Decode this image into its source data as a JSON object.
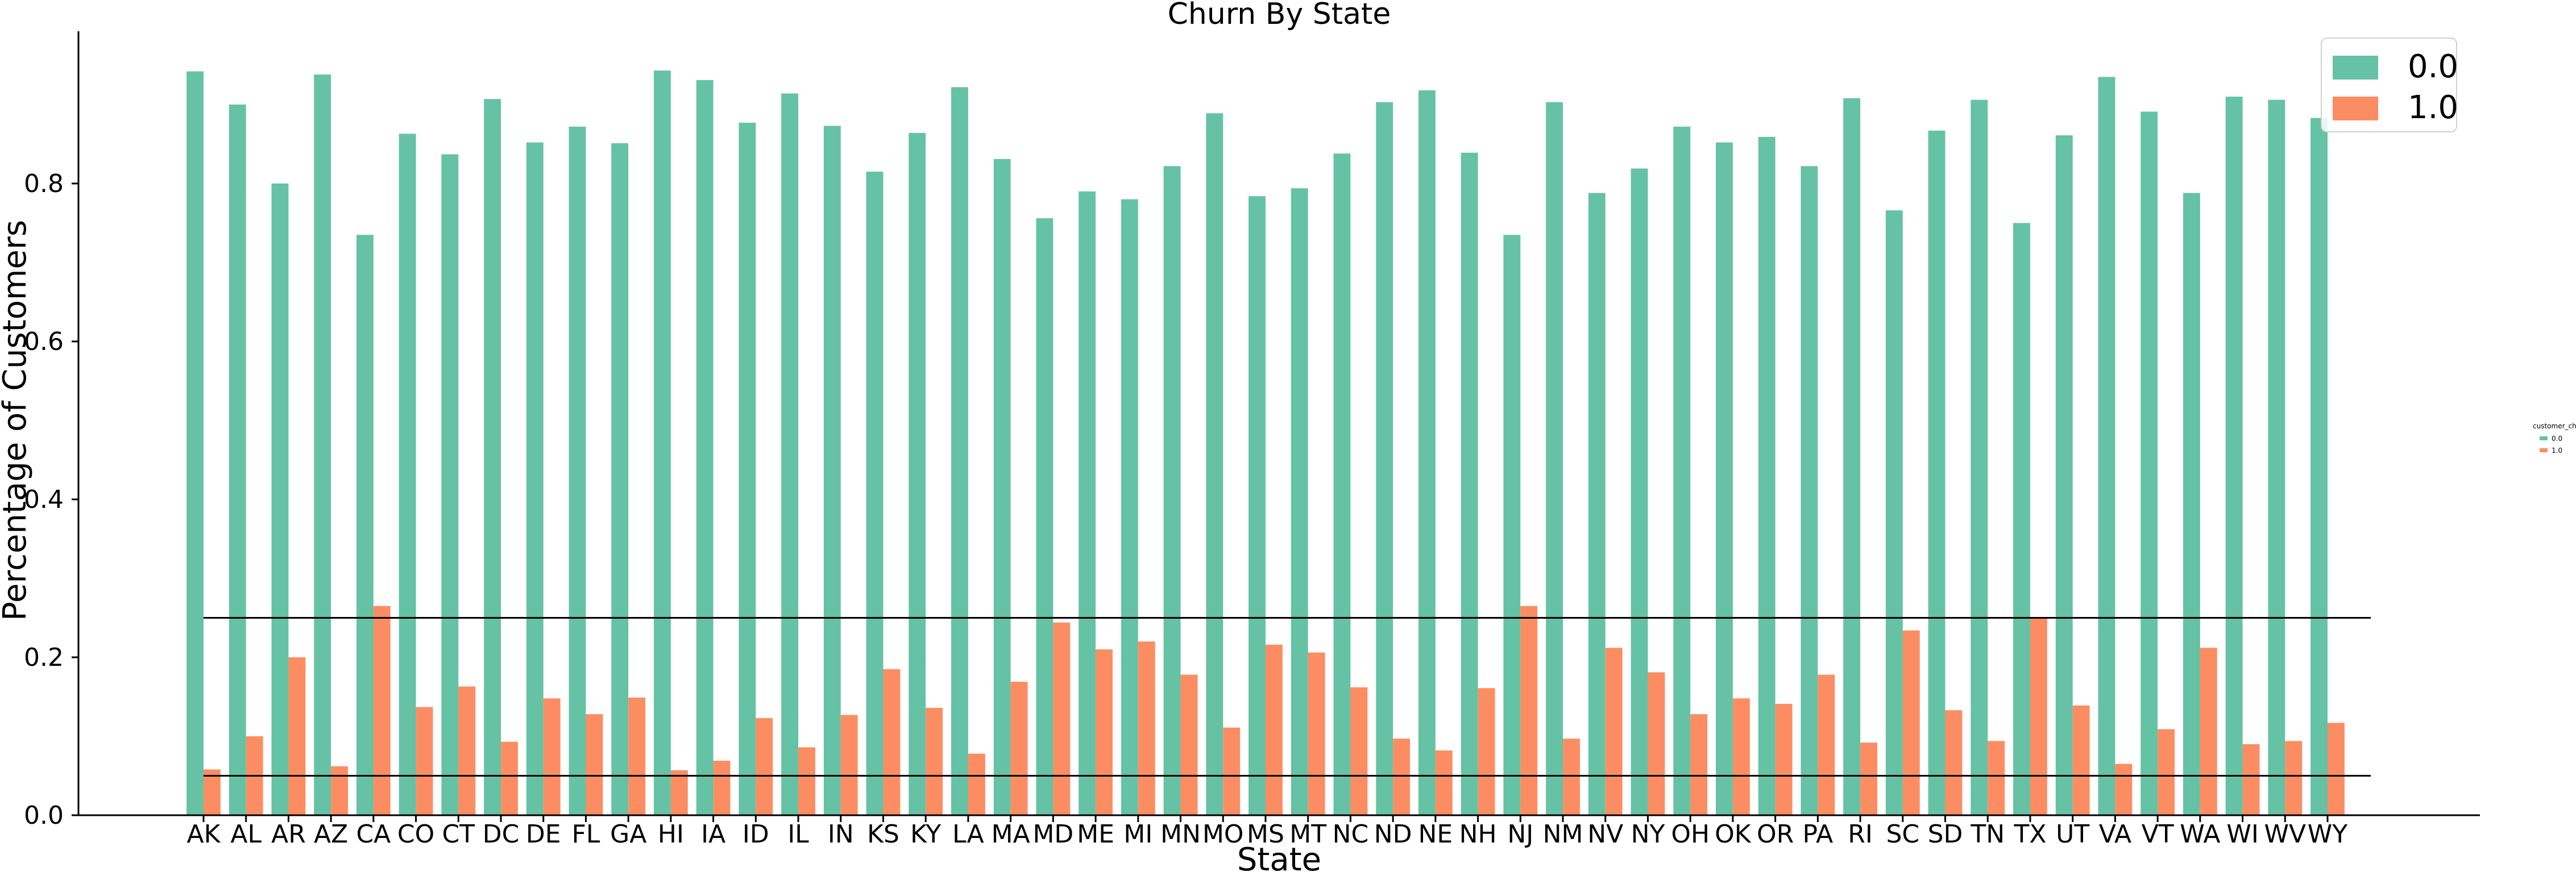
{
  "chart_data": {
    "type": "bar",
    "title": "Churn By State",
    "xlabel": "State",
    "ylabel": "Percentage of Customers",
    "ylim": [
      0,
      0.99
    ],
    "yticks": [
      0.0,
      0.2,
      0.4,
      0.6,
      0.8
    ],
    "ytick_labels": [
      "0.0",
      "0.2",
      "0.4",
      "0.6",
      "0.8"
    ],
    "categories": [
      "AK",
      "AL",
      "AR",
      "AZ",
      "CA",
      "CO",
      "CT",
      "DC",
      "DE",
      "FL",
      "GA",
      "HI",
      "IA",
      "ID",
      "IL",
      "IN",
      "KS",
      "KY",
      "LA",
      "MA",
      "MD",
      "ME",
      "MI",
      "MN",
      "MO",
      "MS",
      "MT",
      "NC",
      "ND",
      "NE",
      "NH",
      "NJ",
      "NM",
      "NV",
      "NY",
      "OH",
      "OK",
      "OR",
      "PA",
      "RI",
      "SC",
      "SD",
      "TN",
      "TX",
      "UT",
      "VA",
      "VT",
      "WA",
      "WI",
      "WV",
      "WY"
    ],
    "series": [
      {
        "name": "0.0",
        "color": "#66c2a5",
        "values": [
          0.942,
          0.9,
          0.8,
          0.938,
          0.735,
          0.863,
          0.837,
          0.907,
          0.852,
          0.872,
          0.851,
          0.943,
          0.931,
          0.877,
          0.914,
          0.873,
          0.815,
          0.864,
          0.922,
          0.831,
          0.756,
          0.79,
          0.78,
          0.822,
          0.889,
          0.784,
          0.794,
          0.838,
          0.903,
          0.918,
          0.839,
          0.735,
          0.903,
          0.788,
          0.819,
          0.872,
          0.852,
          0.859,
          0.822,
          0.908,
          0.766,
          0.867,
          0.906,
          0.75,
          0.861,
          0.935,
          0.891,
          0.788,
          0.91,
          0.906,
          0.883
        ]
      },
      {
        "name": "1.0",
        "color": "#fc8d62",
        "values": [
          0.058,
          0.1,
          0.2,
          0.062,
          0.265,
          0.137,
          0.163,
          0.093,
          0.148,
          0.128,
          0.149,
          0.057,
          0.069,
          0.123,
          0.086,
          0.127,
          0.185,
          0.136,
          0.078,
          0.169,
          0.244,
          0.21,
          0.22,
          0.178,
          0.111,
          0.216,
          0.206,
          0.162,
          0.097,
          0.082,
          0.161,
          0.265,
          0.097,
          0.212,
          0.181,
          0.128,
          0.148,
          0.141,
          0.178,
          0.092,
          0.234,
          0.133,
          0.094,
          0.25,
          0.139,
          0.065,
          0.109,
          0.212,
          0.09,
          0.094,
          0.117
        ]
      }
    ],
    "hlines": [
      0.25,
      0.05
    ],
    "legend": {
      "placement": "top-right",
      "entries": [
        "0.0",
        "1.0"
      ]
    },
    "outer_legend": {
      "title": "customer_churn",
      "placement": "right",
      "entries": [
        "0.0",
        "1.0"
      ]
    },
    "grid": false
  }
}
